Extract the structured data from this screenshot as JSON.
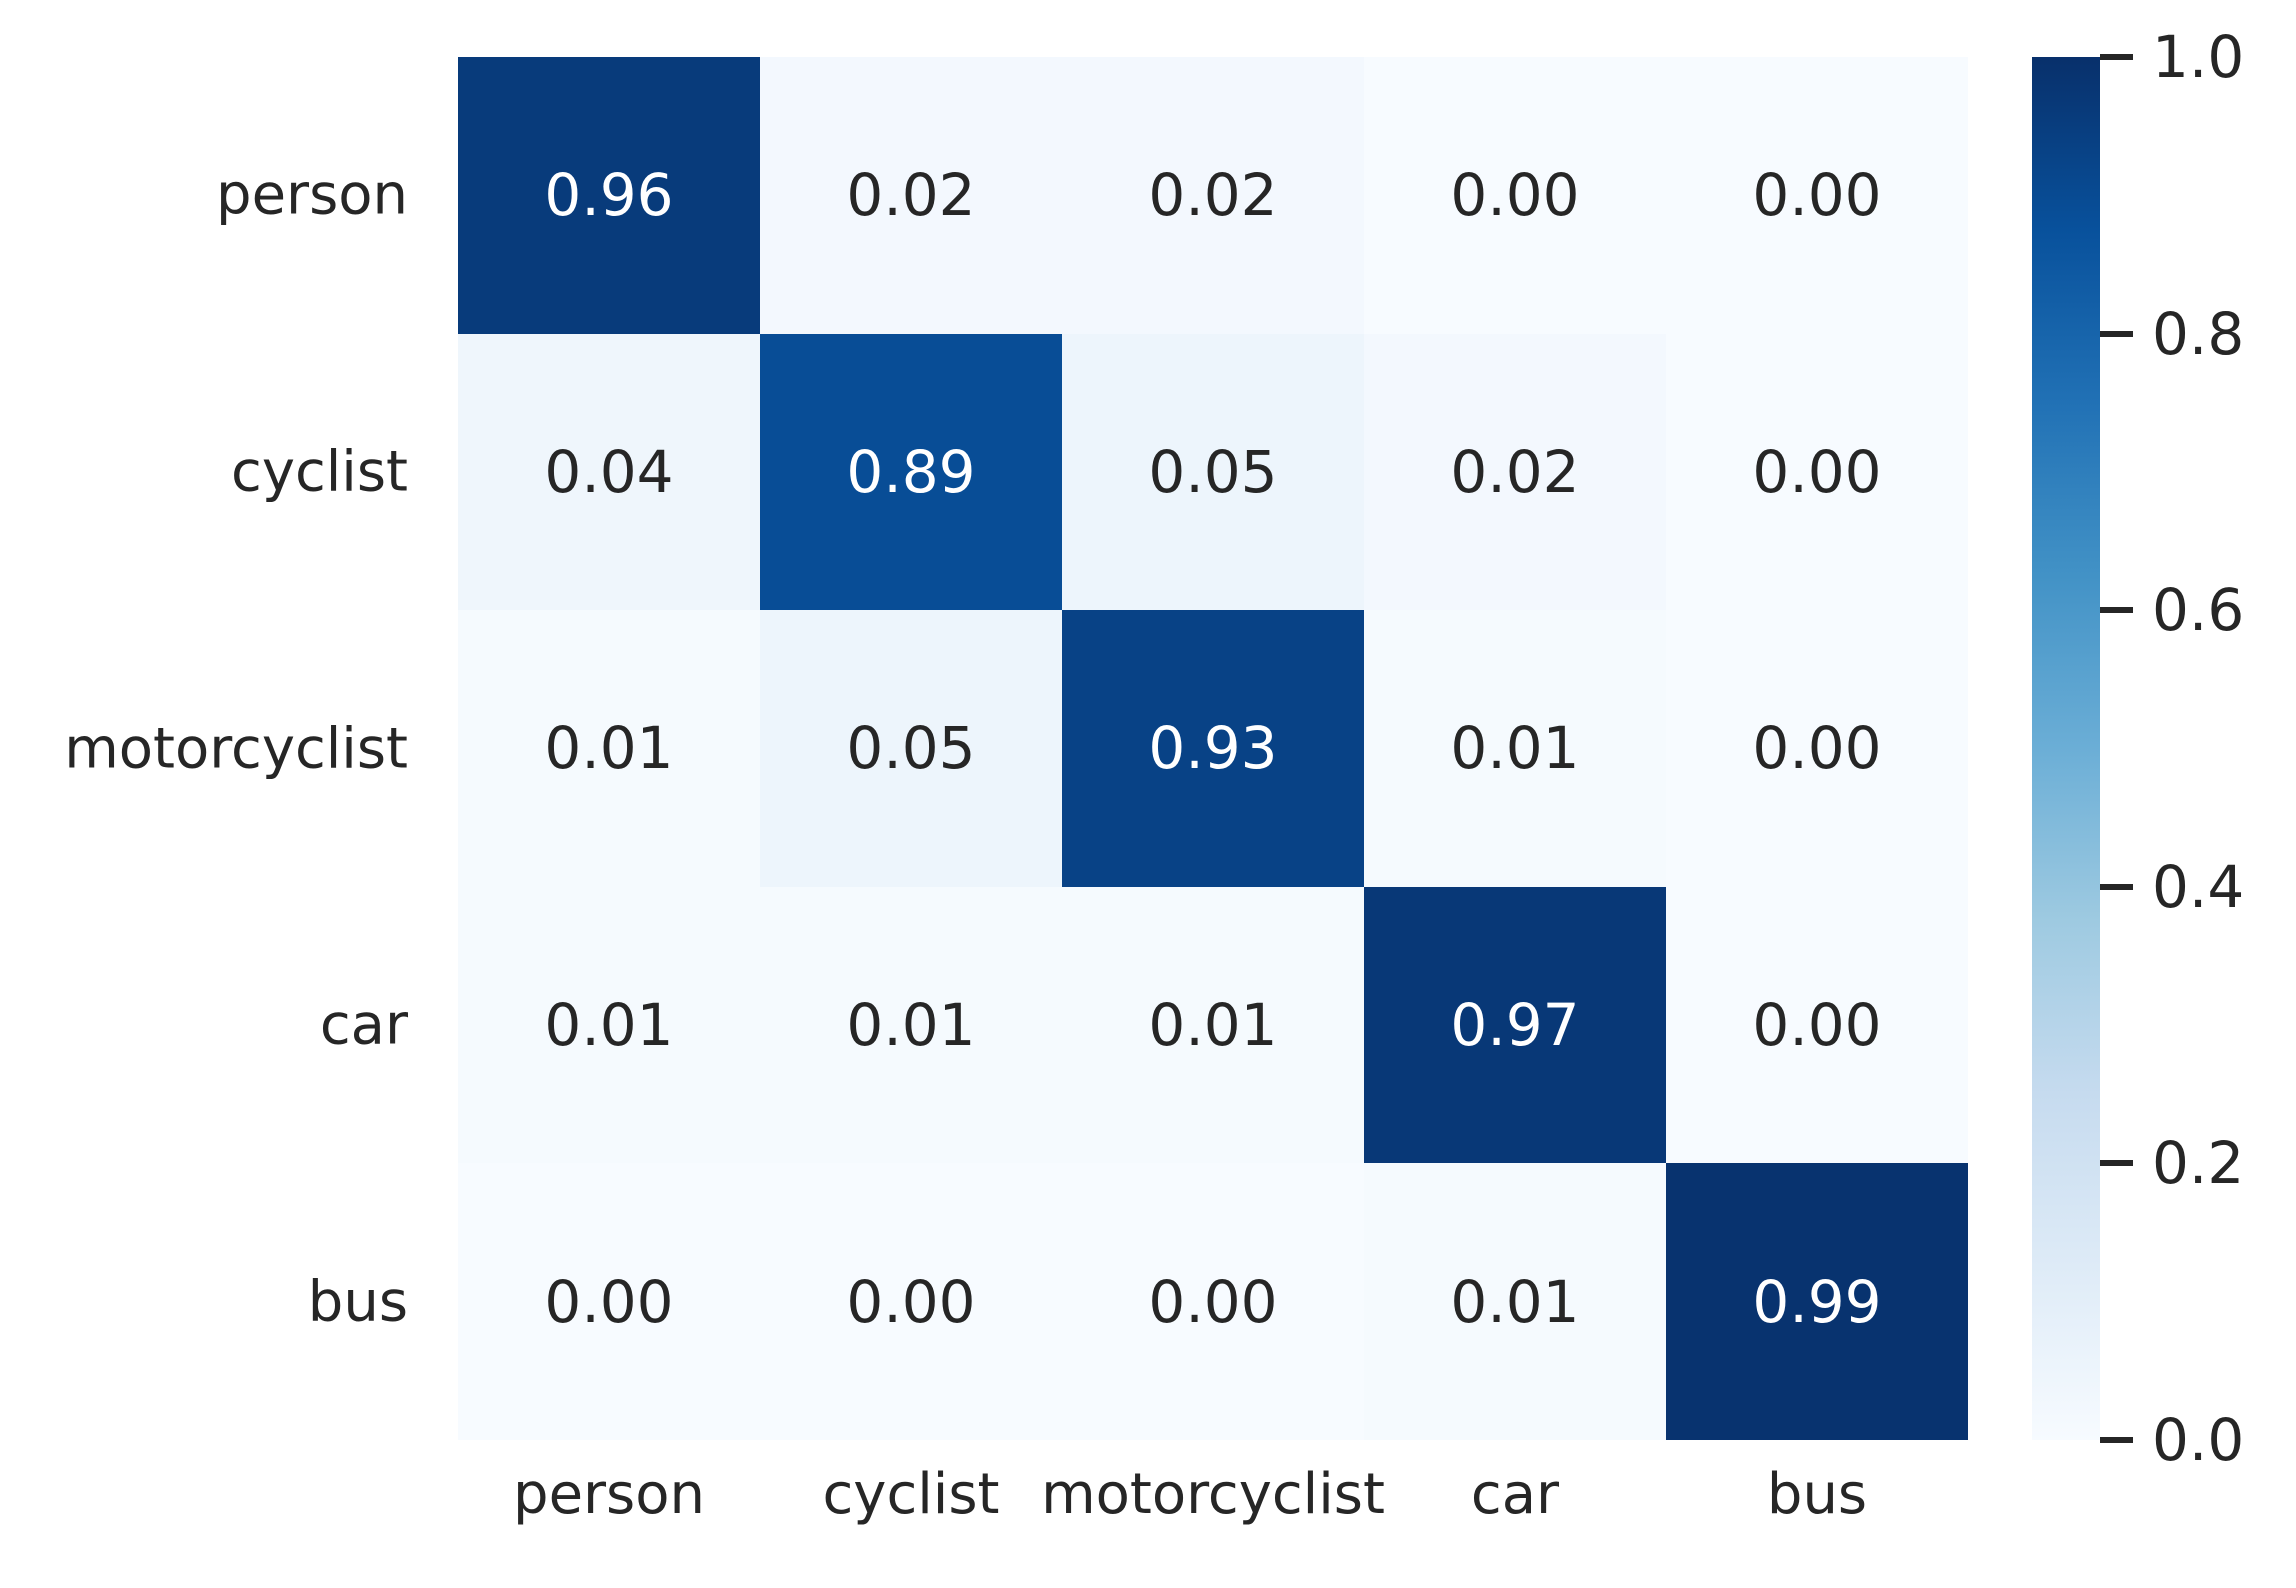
{
  "figure": {
    "background_color": "#ffffff",
    "text_color": "#262626"
  },
  "chart_data": {
    "type": "heatmap",
    "title": "",
    "xlabel": "",
    "ylabel": "",
    "rows": [
      "person",
      "cyclist",
      "motorcyclist",
      "car",
      "bus"
    ],
    "columns": [
      "person",
      "cyclist",
      "motorcyclist",
      "car",
      "bus"
    ],
    "matrix": [
      [
        0.96,
        0.02,
        0.02,
        0.0,
        0.0
      ],
      [
        0.04,
        0.89,
        0.05,
        0.02,
        0.0
      ],
      [
        0.01,
        0.05,
        0.93,
        0.01,
        0.0
      ],
      [
        0.01,
        0.01,
        0.01,
        0.97,
        0.0
      ],
      [
        0.0,
        0.0,
        0.0,
        0.01,
        0.99
      ]
    ],
    "value_format_decimals": 2,
    "value_range": [
      0.0,
      1.0
    ],
    "grid": false,
    "colormap": {
      "name": "Blues",
      "anchors": [
        "#f7fbff",
        "#deebf7",
        "#c6dbef",
        "#9ecae1",
        "#6baed6",
        "#4292c6",
        "#2171b5",
        "#08519c",
        "#08306b"
      ]
    },
    "annotation_colors": {
      "on_light": "#262626",
      "on_dark": "#ffffff",
      "dark_threshold": 0.5
    },
    "colorbar": {
      "position": "right",
      "ticks": [
        1.0,
        0.8,
        0.6,
        0.4,
        0.2,
        0.0
      ],
      "tick_labels": [
        "1.0",
        "0.8",
        "0.6",
        "0.4",
        "0.2",
        "0.0"
      ]
    }
  }
}
